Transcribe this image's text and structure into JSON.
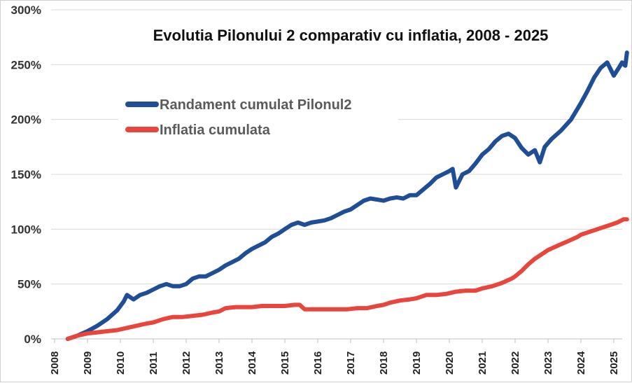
{
  "chart_data": {
    "type": "line",
    "title": "Evolutia Pilonului 2 comparativ cu inflatia, 2008 - 2025",
    "xlabel": "",
    "ylabel": "",
    "xlim": [
      2008,
      2025.4
    ],
    "ylim": [
      0,
      300
    ],
    "x_ticks": [
      "2008",
      "2009",
      "2010",
      "2011",
      "2012",
      "2013",
      "2014",
      "2015",
      "2016",
      "2017",
      "2018",
      "2019",
      "2020",
      "2021",
      "2022",
      "2023",
      "2024",
      "2025"
    ],
    "y_ticks": [
      "0%",
      "50%",
      "100%",
      "150%",
      "200%",
      "250%",
      "300%"
    ],
    "grid": "horizontal",
    "legend_position": "upper-left",
    "series": [
      {
        "name": "Randament cumulat Pilonul2",
        "color": "#1f4e96",
        "points": [
          [
            2008.4,
            0
          ],
          [
            2008.7,
            3
          ],
          [
            2009.0,
            7
          ],
          [
            2009.3,
            12
          ],
          [
            2009.6,
            18
          ],
          [
            2009.9,
            26
          ],
          [
            2010.1,
            34
          ],
          [
            2010.2,
            40
          ],
          [
            2010.4,
            36
          ],
          [
            2010.6,
            40
          ],
          [
            2010.8,
            42
          ],
          [
            2011.0,
            45
          ],
          [
            2011.2,
            48
          ],
          [
            2011.4,
            50
          ],
          [
            2011.6,
            48
          ],
          [
            2011.8,
            48
          ],
          [
            2012.0,
            50
          ],
          [
            2012.2,
            55
          ],
          [
            2012.4,
            57
          ],
          [
            2012.6,
            57
          ],
          [
            2012.8,
            60
          ],
          [
            2013.0,
            63
          ],
          [
            2013.2,
            67
          ],
          [
            2013.4,
            70
          ],
          [
            2013.6,
            73
          ],
          [
            2013.8,
            78
          ],
          [
            2014.0,
            82
          ],
          [
            2014.2,
            85
          ],
          [
            2014.4,
            88
          ],
          [
            2014.6,
            93
          ],
          [
            2014.8,
            96
          ],
          [
            2015.0,
            100
          ],
          [
            2015.2,
            104
          ],
          [
            2015.4,
            106
          ],
          [
            2015.6,
            104
          ],
          [
            2015.8,
            106
          ],
          [
            2016.0,
            107
          ],
          [
            2016.2,
            108
          ],
          [
            2016.4,
            110
          ],
          [
            2016.6,
            113
          ],
          [
            2016.8,
            116
          ],
          [
            2017.0,
            118
          ],
          [
            2017.2,
            122
          ],
          [
            2017.4,
            126
          ],
          [
            2017.6,
            128
          ],
          [
            2017.8,
            127
          ],
          [
            2018.0,
            126
          ],
          [
            2018.2,
            128
          ],
          [
            2018.4,
            129
          ],
          [
            2018.6,
            128
          ],
          [
            2018.8,
            131
          ],
          [
            2019.0,
            131
          ],
          [
            2019.2,
            136
          ],
          [
            2019.4,
            141
          ],
          [
            2019.6,
            147
          ],
          [
            2019.8,
            150
          ],
          [
            2020.0,
            153
          ],
          [
            2020.1,
            155
          ],
          [
            2020.2,
            138
          ],
          [
            2020.4,
            150
          ],
          [
            2020.6,
            153
          ],
          [
            2020.8,
            160
          ],
          [
            2021.0,
            168
          ],
          [
            2021.2,
            173
          ],
          [
            2021.4,
            180
          ],
          [
            2021.6,
            185
          ],
          [
            2021.8,
            187
          ],
          [
            2022.0,
            183
          ],
          [
            2022.2,
            174
          ],
          [
            2022.4,
            168
          ],
          [
            2022.6,
            172
          ],
          [
            2022.75,
            161
          ],
          [
            2022.9,
            175
          ],
          [
            2023.1,
            182
          ],
          [
            2023.4,
            190
          ],
          [
            2023.7,
            200
          ],
          [
            2024.0,
            215
          ],
          [
            2024.2,
            226
          ],
          [
            2024.4,
            238
          ],
          [
            2024.6,
            247
          ],
          [
            2024.8,
            252
          ],
          [
            2025.0,
            240
          ],
          [
            2025.15,
            247
          ],
          [
            2025.25,
            252
          ],
          [
            2025.35,
            249
          ],
          [
            2025.4,
            261
          ]
        ]
      },
      {
        "name": "Inflatia cumulata",
        "color": "#e8453c",
        "points": [
          [
            2008.4,
            0
          ],
          [
            2008.7,
            3
          ],
          [
            2009.0,
            5
          ],
          [
            2009.3,
            6
          ],
          [
            2009.6,
            7
          ],
          [
            2009.9,
            8
          ],
          [
            2010.2,
            10
          ],
          [
            2010.5,
            12
          ],
          [
            2010.8,
            14
          ],
          [
            2011.0,
            15
          ],
          [
            2011.3,
            18
          ],
          [
            2011.6,
            20
          ],
          [
            2011.9,
            20
          ],
          [
            2012.2,
            21
          ],
          [
            2012.5,
            22
          ],
          [
            2012.8,
            24
          ],
          [
            2013.0,
            25
          ],
          [
            2013.2,
            28
          ],
          [
            2013.5,
            29
          ],
          [
            2013.8,
            29
          ],
          [
            2014.0,
            29
          ],
          [
            2014.3,
            30
          ],
          [
            2014.6,
            30
          ],
          [
            2014.9,
            30
          ],
          [
            2015.0,
            30
          ],
          [
            2015.3,
            31
          ],
          [
            2015.45,
            31
          ],
          [
            2015.6,
            27
          ],
          [
            2015.8,
            27
          ],
          [
            2016.0,
            27
          ],
          [
            2016.3,
            27
          ],
          [
            2016.6,
            27
          ],
          [
            2016.9,
            27
          ],
          [
            2017.2,
            28
          ],
          [
            2017.5,
            28
          ],
          [
            2017.8,
            30
          ],
          [
            2018.0,
            31
          ],
          [
            2018.2,
            33
          ],
          [
            2018.5,
            35
          ],
          [
            2018.8,
            36
          ],
          [
            2019.0,
            37
          ],
          [
            2019.3,
            40
          ],
          [
            2019.6,
            40
          ],
          [
            2019.9,
            41
          ],
          [
            2020.2,
            43
          ],
          [
            2020.5,
            44
          ],
          [
            2020.8,
            44
          ],
          [
            2021.0,
            46
          ],
          [
            2021.3,
            48
          ],
          [
            2021.6,
            51
          ],
          [
            2021.9,
            55
          ],
          [
            2022.0,
            57
          ],
          [
            2022.2,
            62
          ],
          [
            2022.4,
            68
          ],
          [
            2022.6,
            73
          ],
          [
            2022.8,
            77
          ],
          [
            2023.0,
            81
          ],
          [
            2023.3,
            85
          ],
          [
            2023.6,
            89
          ],
          [
            2023.9,
            93
          ],
          [
            2024.0,
            95
          ],
          [
            2024.3,
            98
          ],
          [
            2024.6,
            101
          ],
          [
            2024.9,
            104
          ],
          [
            2025.1,
            106
          ],
          [
            2025.3,
            109
          ],
          [
            2025.4,
            109
          ]
        ]
      }
    ]
  }
}
